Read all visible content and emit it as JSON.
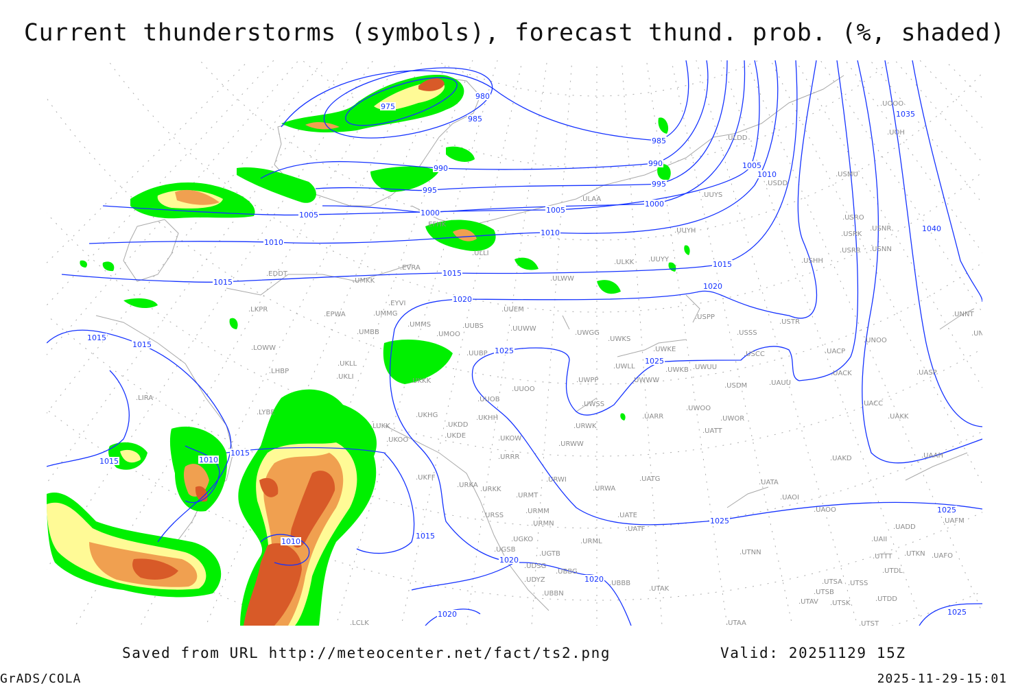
{
  "title": "Current thunderstorms (symbols), forecast thund. prob. (%, shaded)",
  "footer": {
    "saved": "Saved from URL http://meteocenter.net/fact/ts2.png",
    "valid": "Valid: 20251129 15Z",
    "software": "GrADS/COLA",
    "timestamp": "2025-11-29-15:01"
  },
  "colors": {
    "isobar": "#1432ff",
    "station": "#8c8c8c",
    "prob_low": "#00f000",
    "prob_mid": "#fffa96",
    "prob_high": "#f0a050",
    "prob_max": "#d85a28"
  },
  "isobar_labels": [
    "975",
    "980",
    "985",
    "985",
    "990",
    "990",
    "995",
    "995",
    "1000",
    "1000",
    "1005",
    "1005",
    "1005",
    "1010",
    "1010",
    "1010",
    "1015",
    "1015",
    "1015",
    "1015",
    "1015",
    "1015",
    "1015",
    "1015",
    "1010",
    "1010",
    "1020",
    "1020",
    "1020",
    "1020",
    "1020",
    "1025",
    "1025",
    "1025",
    "1025",
    "1025",
    "1035",
    "1040"
  ],
  "stations": [
    "ULDD",
    "USMU",
    "UOOO",
    "UOH",
    "USDD",
    "ULAA",
    "UUYS",
    "USRO",
    "USRK",
    "USNR",
    "USNN",
    "USRR",
    "USHH",
    "UUYH",
    "EFHK",
    "ULLI",
    "ULKK",
    "UUYY",
    "EVRA",
    "ULWW",
    "EDDT",
    "UMKK",
    "UUEM",
    "EYVI",
    "LKPR",
    "EPWA",
    "UMMG",
    "UMMS",
    "UMOO",
    "UUBS",
    "UUWW",
    "UWGG",
    "UWKS",
    "USPP",
    "USTR",
    "USSS",
    "UNNT",
    "UNBB",
    "LOWW",
    "UMBB",
    "UUBP",
    "UWKE",
    "UWKB",
    "UWUU",
    "USCC",
    "UACP",
    "UNOO",
    "UASP",
    "LHBP",
    "UKLL",
    "UKLI",
    "UKKK",
    "UWLL",
    "UWWW",
    "UACK",
    "USDM",
    "UAUU",
    "LIRA",
    "UUOO",
    "UWPP",
    "UUOB",
    "UWSS",
    "UARR",
    "UWOO",
    "UWOR",
    "UACC",
    "UAKK",
    "LYBE",
    "UKHG",
    "UKDD",
    "UKHH",
    "URWK",
    "UATT",
    "UKDE",
    "UKOO",
    "UKOW",
    "URWW",
    "LUKK",
    "URRR",
    "UAKD",
    "UAAH",
    "UKFF",
    "UATG",
    "URWI",
    "UATA",
    "URKA",
    "URKK",
    "URWA",
    "URMT",
    "UAOI",
    "UAOO",
    "UAFM",
    "URMM",
    "URSS",
    "UATE",
    "URMN",
    "UATF",
    "UADD",
    "UAII",
    "URML",
    "UGKO",
    "UGSB",
    "UGTB",
    "UTNN",
    "UTTT",
    "UTKN",
    "UAFO",
    "UDSG",
    "UBBG",
    "UTDL",
    "UDYZ",
    "UTSA",
    "UTSS",
    "UTSB",
    "UBBB",
    "UTAK",
    "UBBN",
    "UTAV",
    "UTSK",
    "UTDD",
    "LCLK",
    "UTAA",
    "UTST"
  ]
}
